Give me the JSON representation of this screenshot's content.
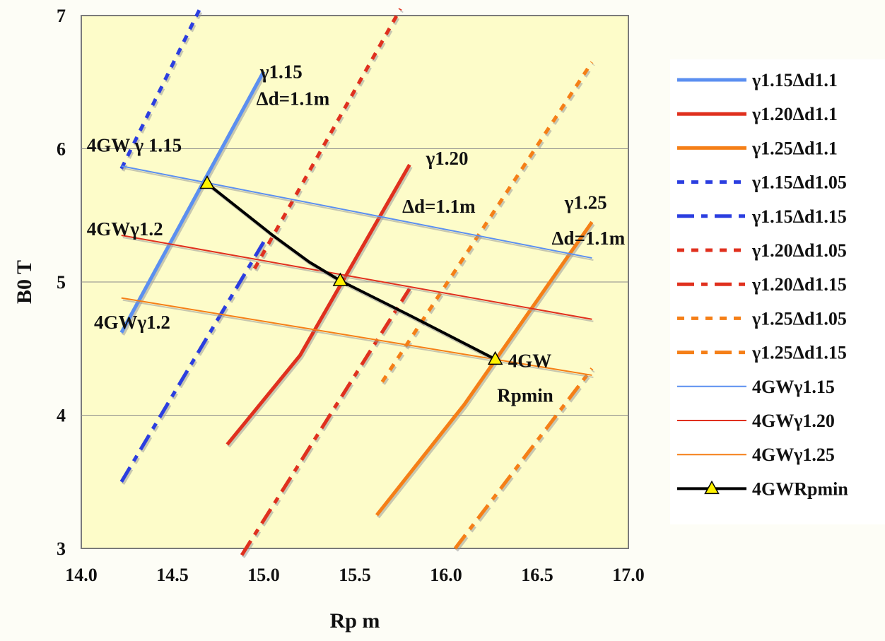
{
  "chart_data": {
    "type": "line",
    "xlabel": "Rp m",
    "ylabel": "B0  T",
    "xlim": [
      14.0,
      17.0
    ],
    "ylim": [
      3,
      7
    ],
    "x_ticks": [
      "14.0",
      "14.5",
      "15.0",
      "15.5",
      "16.0",
      "16.5",
      "17.0"
    ],
    "y_ticks": [
      "3",
      "4",
      "5",
      "6",
      "7"
    ],
    "grid": "horizontal",
    "legend_position": "right",
    "plot_background": "#fdfcc9",
    "series": [
      {
        "name": "γ1.15Δd1.1",
        "color": "#5b8ff0",
        "style": "solid",
        "width": 5,
        "points": [
          [
            14.22,
            4.62
          ],
          [
            15.0,
            6.58
          ]
        ]
      },
      {
        "name": "γ1.20Δd1.1",
        "color": "#e0301e",
        "style": "solid",
        "width": 5,
        "points": [
          [
            14.8,
            3.78
          ],
          [
            15.2,
            4.45
          ],
          [
            15.8,
            5.88
          ]
        ]
      },
      {
        "name": "γ1.25Δd1.1",
        "color": "#f57f17",
        "style": "solid",
        "width": 5,
        "points": [
          [
            15.62,
            3.25
          ],
          [
            16.1,
            4.08
          ],
          [
            16.8,
            5.45
          ]
        ]
      },
      {
        "name": "γ1.15Δd1.05",
        "color": "#2b3ee0",
        "style": "dot",
        "width": 5,
        "points": [
          [
            14.22,
            5.85
          ],
          [
            14.65,
            7.05
          ]
        ]
      },
      {
        "name": "γ1.15Δd1.15",
        "color": "#2b3ee0",
        "style": "dashdot",
        "width": 5,
        "points": [
          [
            14.22,
            3.5
          ],
          [
            15.0,
            5.3
          ]
        ]
      },
      {
        "name": "γ1.20Δd1.05",
        "color": "#e0301e",
        "style": "dot",
        "width": 5,
        "points": [
          [
            14.95,
            5.1
          ],
          [
            15.75,
            7.05
          ]
        ]
      },
      {
        "name": "γ1.20Δd1.15",
        "color": "#e0301e",
        "style": "dashdot",
        "width": 5,
        "points": [
          [
            14.88,
            2.95
          ],
          [
            15.8,
            4.95
          ]
        ]
      },
      {
        "name": "γ1.25Δd1.05",
        "color": "#f57f17",
        "style": "dot",
        "width": 5,
        "points": [
          [
            15.65,
            4.25
          ],
          [
            16.8,
            6.65
          ]
        ]
      },
      {
        "name": "γ1.25Δd1.15",
        "color": "#f57f17",
        "style": "dashdot",
        "width": 5,
        "points": [
          [
            16.05,
            3.0
          ],
          [
            16.8,
            4.35
          ]
        ]
      },
      {
        "name": "4GWγ1.15",
        "color": "#5b8ff0",
        "style": "solid",
        "width": 2,
        "points": [
          [
            14.22,
            5.87
          ],
          [
            16.8,
            5.18
          ]
        ]
      },
      {
        "name": "4GWγ1.20",
        "color": "#e0301e",
        "style": "solid",
        "width": 2,
        "points": [
          [
            14.22,
            5.35
          ],
          [
            16.8,
            4.72
          ]
        ]
      },
      {
        "name": "4GWγ1.25",
        "color": "#f57f17",
        "style": "solid",
        "width": 2,
        "points": [
          [
            14.22,
            4.88
          ],
          [
            16.8,
            4.3
          ]
        ]
      },
      {
        "name": "4GWRpmin",
        "color": "#000000",
        "style": "solid",
        "width": 4,
        "marker": "triangle",
        "marker_color": "#fff200",
        "points": [
          [
            14.69,
            5.74
          ],
          [
            15.05,
            5.35
          ],
          [
            15.25,
            5.15
          ],
          [
            15.42,
            5.01
          ],
          [
            15.8,
            4.75
          ],
          [
            16.27,
            4.42
          ]
        ],
        "marker_points": [
          [
            14.69,
            5.74
          ],
          [
            15.42,
            5.01
          ],
          [
            16.27,
            4.42
          ]
        ]
      }
    ],
    "annotations": [
      {
        "text": "γ1.15",
        "x": 14.98,
        "y": 6.53
      },
      {
        "text": "Δd=1.1m",
        "x": 14.96,
        "y": 6.33
      },
      {
        "text": "4GW γ 1.15",
        "x": 14.03,
        "y": 5.98
      },
      {
        "text": "γ1.20",
        "x": 15.89,
        "y": 5.88
      },
      {
        "text": "Δd=1.1m",
        "x": 15.76,
        "y": 5.52
      },
      {
        "text": "γ1.25",
        "x": 16.65,
        "y": 5.55
      },
      {
        "text": "Δd=1.1m",
        "x": 16.58,
        "y": 5.28
      },
      {
        "text": "4GWγ1.2",
        "x": 14.03,
        "y": 5.35
      },
      {
        "text": "4GWγ1.2",
        "x": 14.07,
        "y": 4.65
      },
      {
        "text": "4GW",
        "x": 16.34,
        "y": 4.36
      },
      {
        "text": "Rpmin",
        "x": 16.28,
        "y": 4.1
      }
    ]
  }
}
